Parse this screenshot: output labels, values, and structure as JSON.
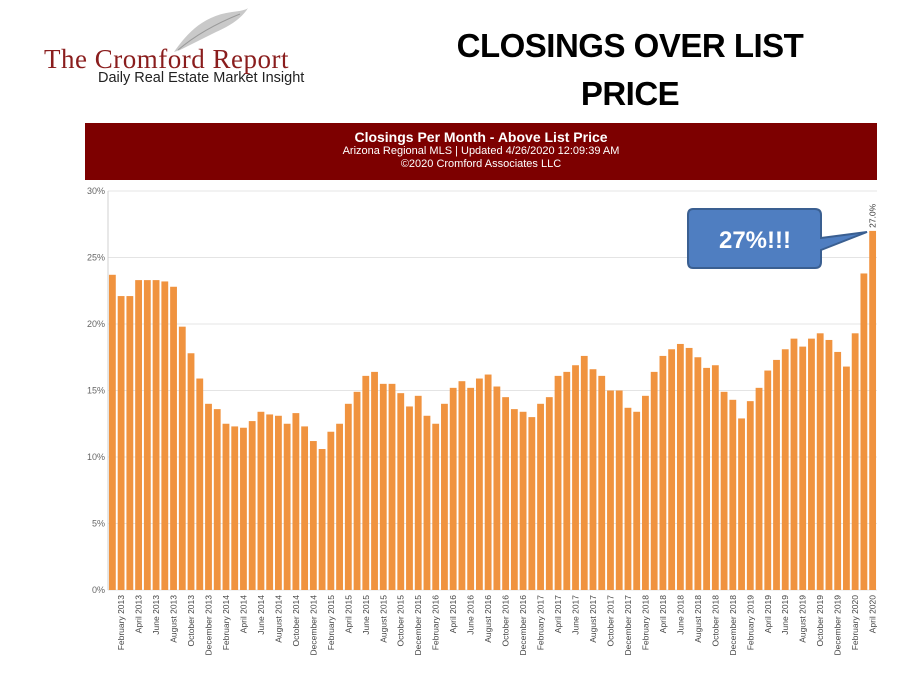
{
  "logo": {
    "title": "The Cromford Report",
    "subtitle": "Daily Real Estate Market Insight"
  },
  "page_title": {
    "line1": "CLOSINGS OVER LIST",
    "line2": "PRICE"
  },
  "chart_header": {
    "title": "Closings Per Month - Above List Price",
    "subtitle": "Arizona Regional MLS | Updated  4/26/2020 12:09:39 AM",
    "copyright": "©2020 Cromford Associates LLC"
  },
  "callout": {
    "text": "27%!!!"
  },
  "colors": {
    "bar": "#f0933f",
    "header_bg": "#7d0000",
    "callout_fill": "#4f7ec1",
    "callout_stroke": "#3a5f91",
    "logo_red": "#8a1d1d"
  },
  "chart_data": {
    "type": "bar",
    "title": "Closings Per Month - Above List Price",
    "ylim": [
      0,
      30
    ],
    "y_ticks": [
      "0%",
      "5%",
      "10%",
      "15%",
      "20%",
      "25%",
      "30%"
    ],
    "y_tick_values": [
      0,
      5,
      10,
      15,
      20,
      25,
      30
    ],
    "grid": true,
    "categories": [
      "January 2013",
      "February 2013",
      "March 2013",
      "April 2013",
      "May 2013",
      "June 2013",
      "July 2013",
      "August 2013",
      "September 2013",
      "October 2013",
      "November 2013",
      "December 2013",
      "January 2014",
      "February 2014",
      "March 2014",
      "April 2014",
      "May 2014",
      "June 2014",
      "July 2014",
      "August 2014",
      "September 2014",
      "October 2014",
      "November 2014",
      "December 2014",
      "January 2015",
      "February 2015",
      "March 2015",
      "April 2015",
      "May 2015",
      "June 2015",
      "July 2015",
      "August 2015",
      "September 2015",
      "October 2015",
      "November 2015",
      "December 2015",
      "January 2016",
      "February 2016",
      "March 2016",
      "April 2016",
      "May 2016",
      "June 2016",
      "July 2016",
      "August 2016",
      "September 2016",
      "October 2016",
      "November 2016",
      "December 2016",
      "January 2017",
      "February 2017",
      "March 2017",
      "April 2017",
      "May 2017",
      "June 2017",
      "July 2017",
      "August 2017",
      "September 2017",
      "October 2017",
      "November 2017",
      "December 2017",
      "January 2018",
      "February 2018",
      "March 2018",
      "April 2018",
      "May 2018",
      "June 2018",
      "July 2018",
      "August 2018",
      "September 2018",
      "October 2018",
      "November 2018",
      "December 2018",
      "January 2019",
      "February 2019",
      "March 2019",
      "April 2019",
      "May 2019",
      "June 2019",
      "July 2019",
      "August 2019",
      "September 2019",
      "October 2019",
      "November 2019",
      "December 2019",
      "January 2020",
      "February 2020",
      "March 2020",
      "April 2020"
    ],
    "x_tick_labels": [
      "February 2013",
      "April 2013",
      "June 2013",
      "August 2013",
      "October 2013",
      "December 2013",
      "February 2014",
      "April 2014",
      "June 2014",
      "August 2014",
      "October 2014",
      "December 2014",
      "February 2015",
      "April 2015",
      "June 2015",
      "August 2015",
      "October 2015",
      "December 2015",
      "February 2016",
      "April 2016",
      "June 2016",
      "August 2016",
      "October 2016",
      "December 2016",
      "February 2017",
      "April 2017",
      "June 2017",
      "August 2017",
      "October 2017",
      "December 2017",
      "February 2018",
      "April 2018",
      "June 2018",
      "August 2018",
      "October 2018",
      "December 2018",
      "February 2019",
      "April 2019",
      "June 2019",
      "August 2019",
      "October 2019",
      "December 2019",
      "February 2020",
      "April 2020"
    ],
    "values": [
      23.7,
      22.1,
      22.1,
      23.3,
      23.3,
      23.3,
      23.2,
      22.8,
      19.8,
      17.8,
      15.9,
      14.0,
      13.6,
      12.5,
      12.3,
      12.2,
      12.7,
      13.4,
      13.2,
      13.1,
      12.5,
      13.3,
      12.3,
      11.2,
      10.6,
      11.9,
      12.5,
      14.0,
      14.9,
      16.1,
      16.4,
      15.5,
      15.5,
      14.8,
      13.8,
      14.6,
      13.1,
      12.5,
      14.0,
      15.2,
      15.7,
      15.2,
      15.9,
      16.2,
      15.3,
      14.5,
      13.6,
      13.4,
      13.0,
      14.0,
      14.5,
      16.1,
      16.4,
      16.9,
      17.6,
      16.6,
      16.1,
      15.0,
      15.0,
      13.7,
      13.4,
      14.6,
      16.4,
      17.6,
      18.1,
      18.5,
      18.2,
      17.5,
      16.7,
      16.9,
      14.9,
      14.3,
      12.9,
      14.2,
      15.2,
      16.5,
      17.3,
      18.1,
      18.9,
      18.3,
      18.9,
      19.3,
      18.8,
      17.9,
      16.8,
      19.3,
      23.8,
      27.0
    ],
    "data_labels": [
      {
        "category": "April 2020",
        "text": "27.0%"
      }
    ]
  }
}
